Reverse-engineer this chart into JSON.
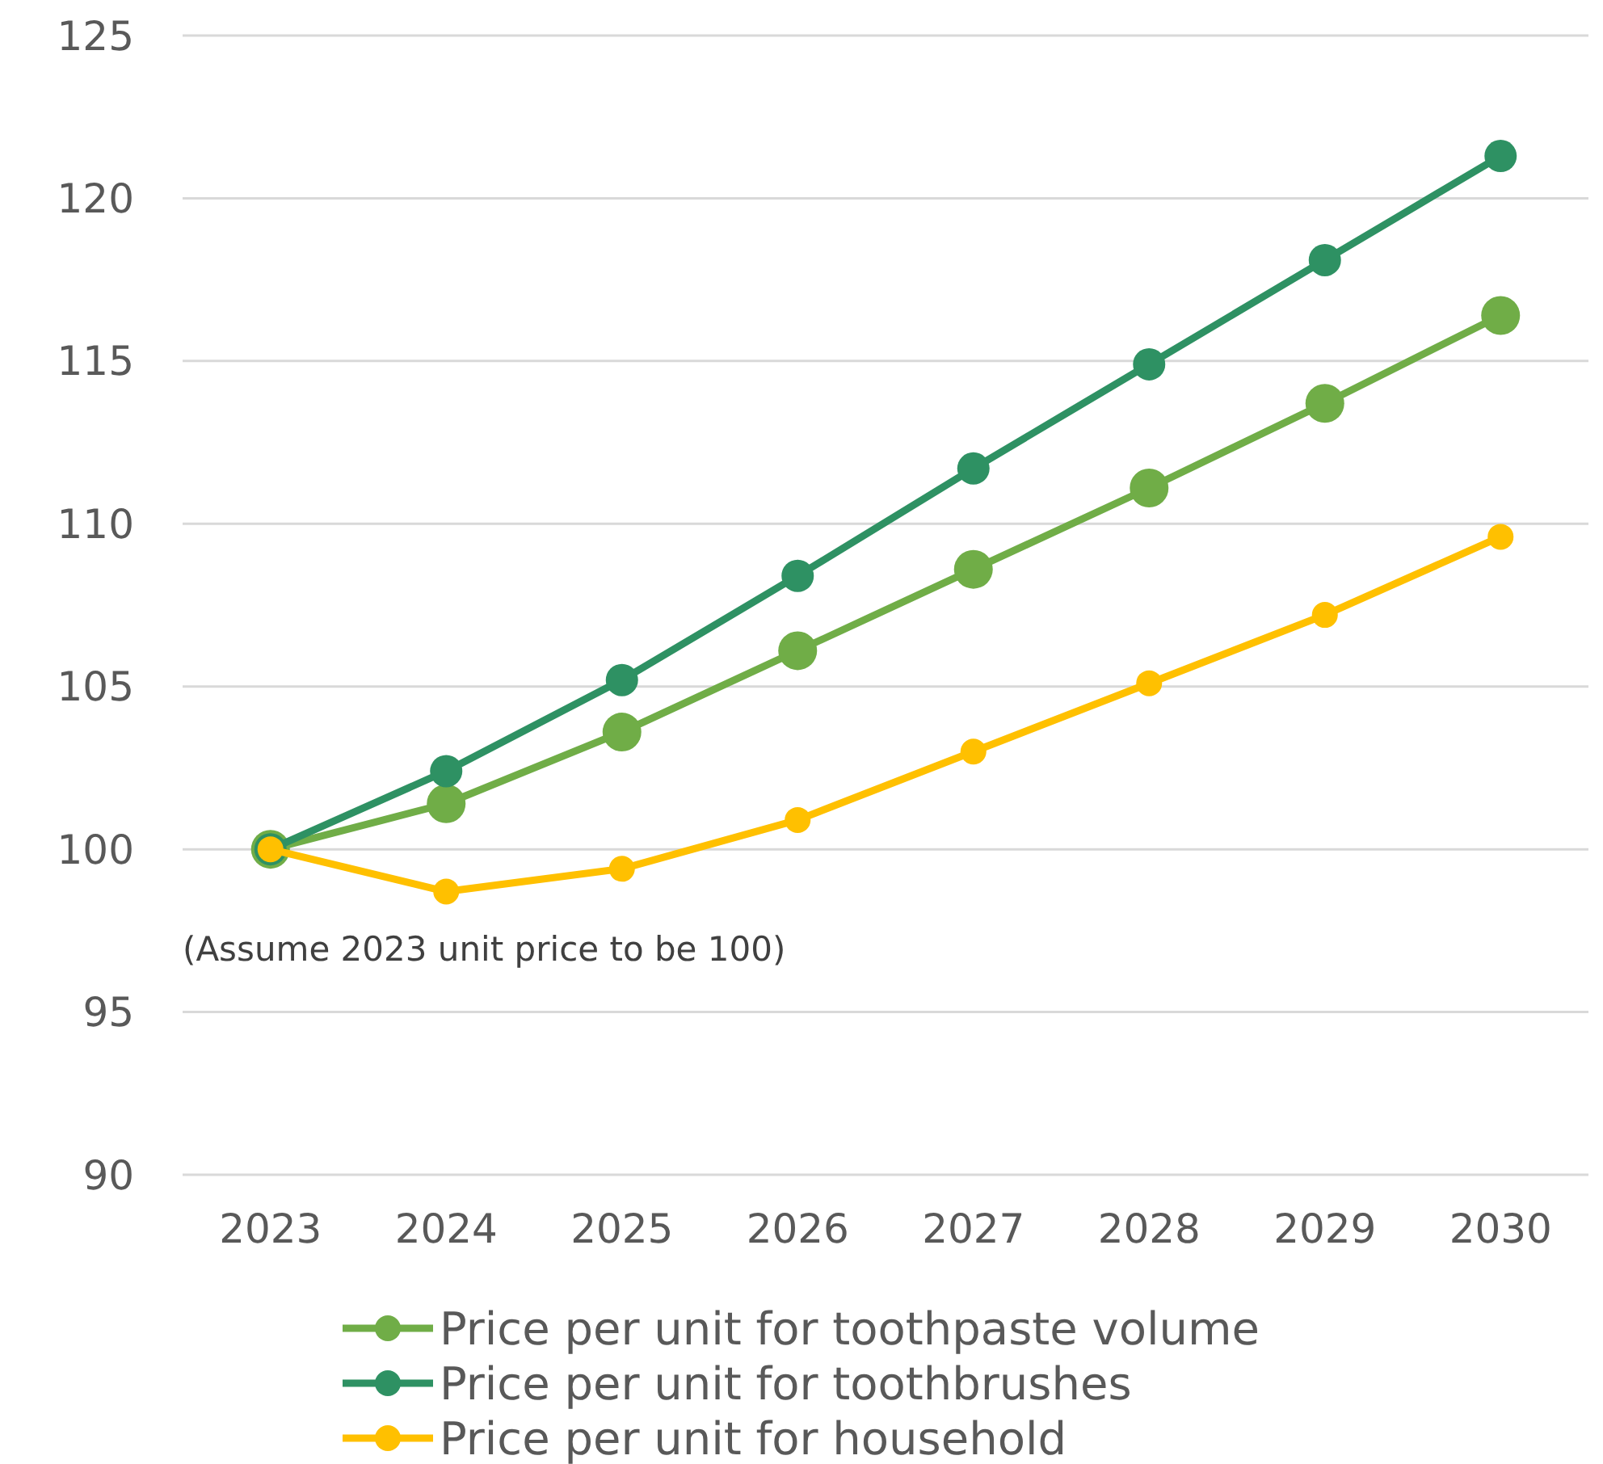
{
  "chart_data": {
    "type": "line",
    "categories": [
      "2023",
      "2024",
      "2025",
      "2026",
      "2027",
      "2028",
      "2029",
      "2030"
    ],
    "series": [
      {
        "name": "Price per unit for toothpaste volume",
        "color": "#70ad47",
        "values": [
          100,
          101.4,
          103.6,
          106.1,
          108.6,
          111.1,
          113.7,
          116.4
        ]
      },
      {
        "name": "Price per unit for toothbrushes",
        "color": "#2e9163",
        "values": [
          100,
          102.4,
          105.2,
          108.4,
          111.7,
          114.9,
          118.1,
          121.3
        ]
      },
      {
        "name": "Price per unit for household",
        "color": "#ffc000",
        "values": [
          100,
          98.7,
          99.4,
          100.9,
          103.0,
          105.1,
          107.2,
          109.6
        ]
      }
    ],
    "ylim": [
      90,
      125
    ],
    "yticks": [
      90,
      95,
      100,
      105,
      110,
      115,
      120,
      125
    ],
    "grid": "y",
    "legend": "bottom",
    "marker": "circle",
    "line_style": "solid",
    "annotations": [
      "(Assume 2023 unit price to be 100)"
    ]
  }
}
